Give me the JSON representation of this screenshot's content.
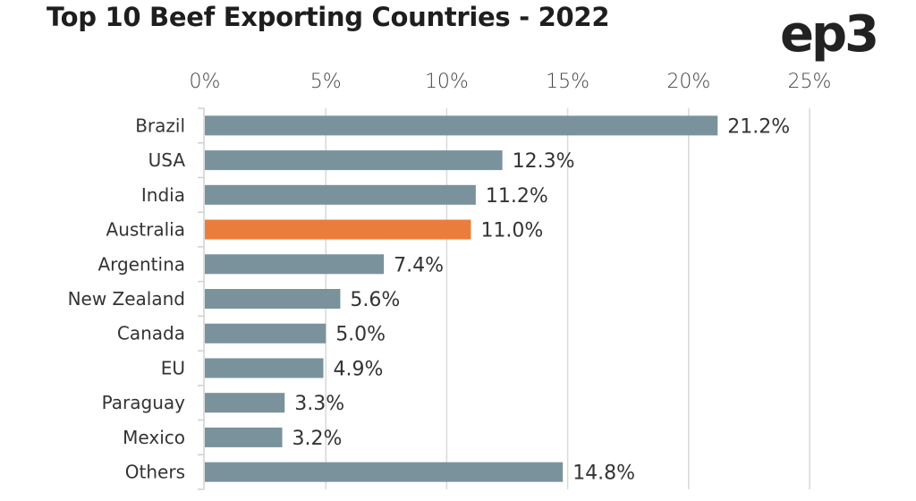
{
  "header": {
    "title": "Top 10 Beef Exporting Countries - 2022",
    "logo": "ep3"
  },
  "chart_data": {
    "type": "bar",
    "orientation": "horizontal",
    "title": "Top 10 Beef Exporting Countries - 2022",
    "xlabel": "",
    "ylabel": "",
    "xlim": [
      0,
      25
    ],
    "x_ticks": [
      "0%",
      "5%",
      "10%",
      "15%",
      "20%",
      "25%"
    ],
    "x_tick_values": [
      0,
      5,
      10,
      15,
      20,
      25
    ],
    "x_axis_position": "top",
    "grid": true,
    "categories": [
      "Brazil",
      "USA",
      "India",
      "Australia",
      "Argentina",
      "New Zealand",
      "Canada",
      "EU",
      "Paraguay",
      "Mexico",
      "Others"
    ],
    "values": [
      21.2,
      12.3,
      11.2,
      11.0,
      7.4,
      5.6,
      5.0,
      4.9,
      3.3,
      3.2,
      14.8
    ],
    "data_labels": [
      "21.2%",
      "12.3%",
      "11.2%",
      "11.0%",
      "7.4%",
      "5.6%",
      "5.0%",
      "4.9%",
      "3.3%",
      "3.2%",
      "14.8%"
    ],
    "colors": {
      "default": "#7a929c",
      "highlight": "#eb7d3c",
      "grid": "#d9d9d9",
      "axis": "#d0d0d0"
    },
    "highlight_category": "Australia"
  }
}
